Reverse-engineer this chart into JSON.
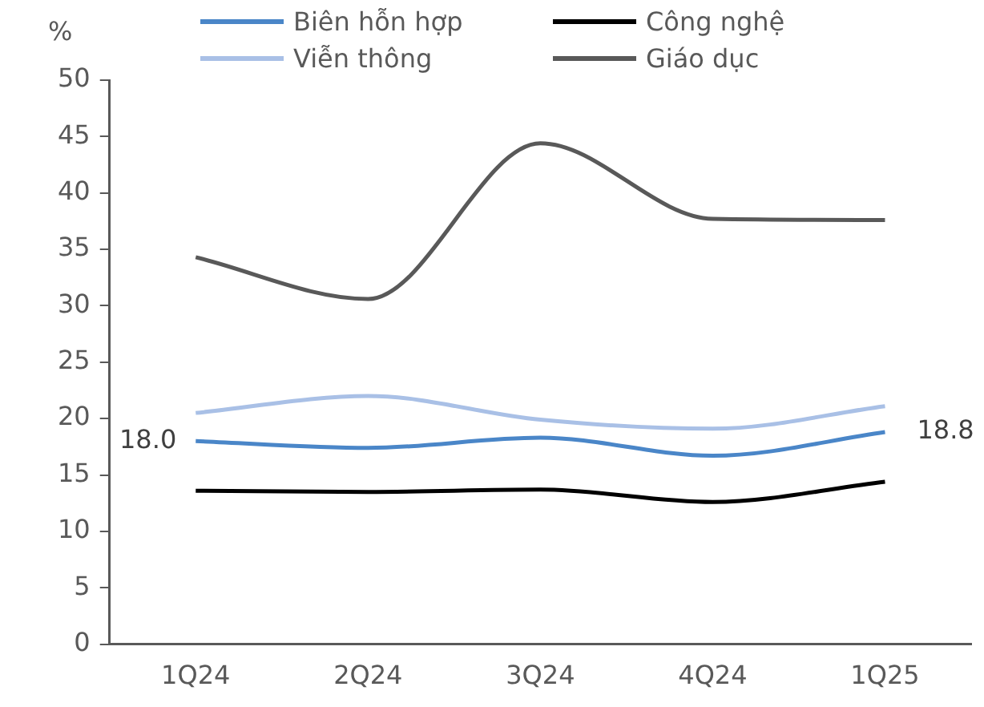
{
  "chart_data": {
    "type": "line",
    "ylabel": "%",
    "categories": [
      "1Q24",
      "2Q24",
      "3Q24",
      "4Q24",
      "1Q25"
    ],
    "series": [
      {
        "name": "Biên hỗn hợp",
        "color": "#4a86c8",
        "values": [
          18.0,
          17.4,
          18.3,
          16.7,
          18.8
        ],
        "value_labels": [
          "18.0",
          null,
          null,
          null,
          "18.8"
        ]
      },
      {
        "name": "Công nghệ",
        "color": "#000000",
        "values": [
          13.6,
          13.5,
          13.7,
          12.6,
          14.4
        ]
      },
      {
        "name": "Viễn thông",
        "color": "#a9c0e6",
        "values": [
          20.5,
          22.0,
          19.9,
          19.1,
          21.1
        ]
      },
      {
        "name": "Giáo dục",
        "color": "#595959",
        "values": [
          34.3,
          30.6,
          44.4,
          37.7,
          37.6
        ]
      }
    ],
    "ylim": [
      0,
      50
    ],
    "yticks": [
      0,
      5,
      10,
      15,
      20,
      25,
      30,
      35,
      40,
      45,
      50
    ],
    "grid": false,
    "legend": "top",
    "marker": "none",
    "line_style": "solid"
  }
}
